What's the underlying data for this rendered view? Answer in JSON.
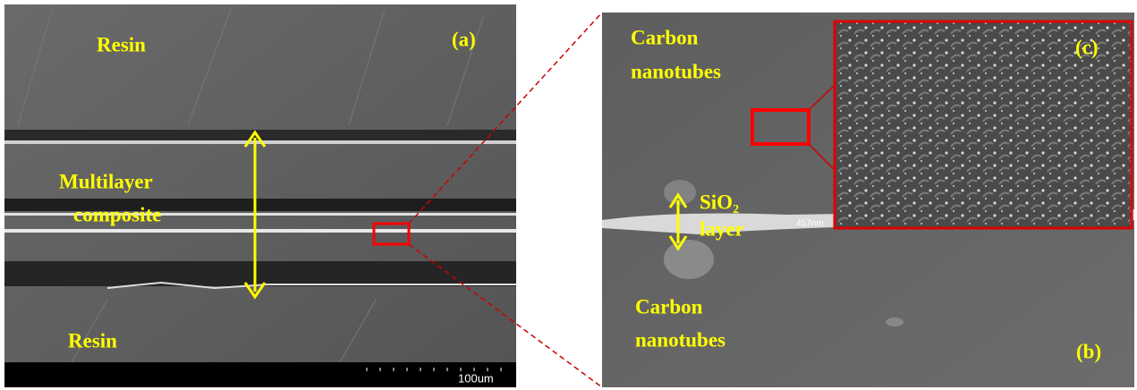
{
  "panel_a": {
    "label": "(a)",
    "top_text": "Resin",
    "middle_text": [
      "Multilayer",
      "composite"
    ],
    "bottom_text": "Resin",
    "scale_bar": "100um"
  },
  "panel_b": {
    "label": "(b)",
    "top_text": [
      "Carbon",
      "nanotubes"
    ],
    "layer_text": [
      "SiO₂",
      "layer"
    ],
    "measurement": "457nm",
    "bottom_text": [
      "Carbon",
      "nanotubes"
    ]
  },
  "panel_c": {
    "label": "(c)"
  }
}
